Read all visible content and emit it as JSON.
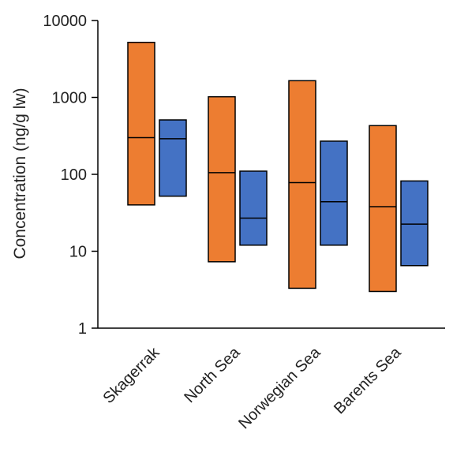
{
  "chart_data": {
    "type": "floating-bar",
    "ylabel": "Concentration (ng/g lw)",
    "yscale": "log",
    "ylim": [
      1,
      10000
    ],
    "yticks": [
      1,
      10,
      100,
      1000,
      10000
    ],
    "ytick_labels": [
      "1",
      "10",
      "100",
      "1000",
      "10000"
    ],
    "categories": [
      "Skagerrak",
      "North Sea",
      "Norwegian Sea",
      "Barents Sea"
    ],
    "series": [
      {
        "color": "#ED7D31",
        "min": [
          40,
          7.3,
          3.3,
          3.0
        ],
        "median": [
          300,
          105,
          78,
          38
        ],
        "max": [
          5200,
          1020,
          1650,
          430
        ]
      },
      {
        "color": "#4472C4",
        "min": [
          52,
          12,
          12,
          6.5
        ],
        "median": [
          290,
          27,
          44,
          22.5
        ],
        "max": [
          510,
          110,
          270,
          82
        ]
      }
    ],
    "grid": false,
    "legend": "none"
  }
}
